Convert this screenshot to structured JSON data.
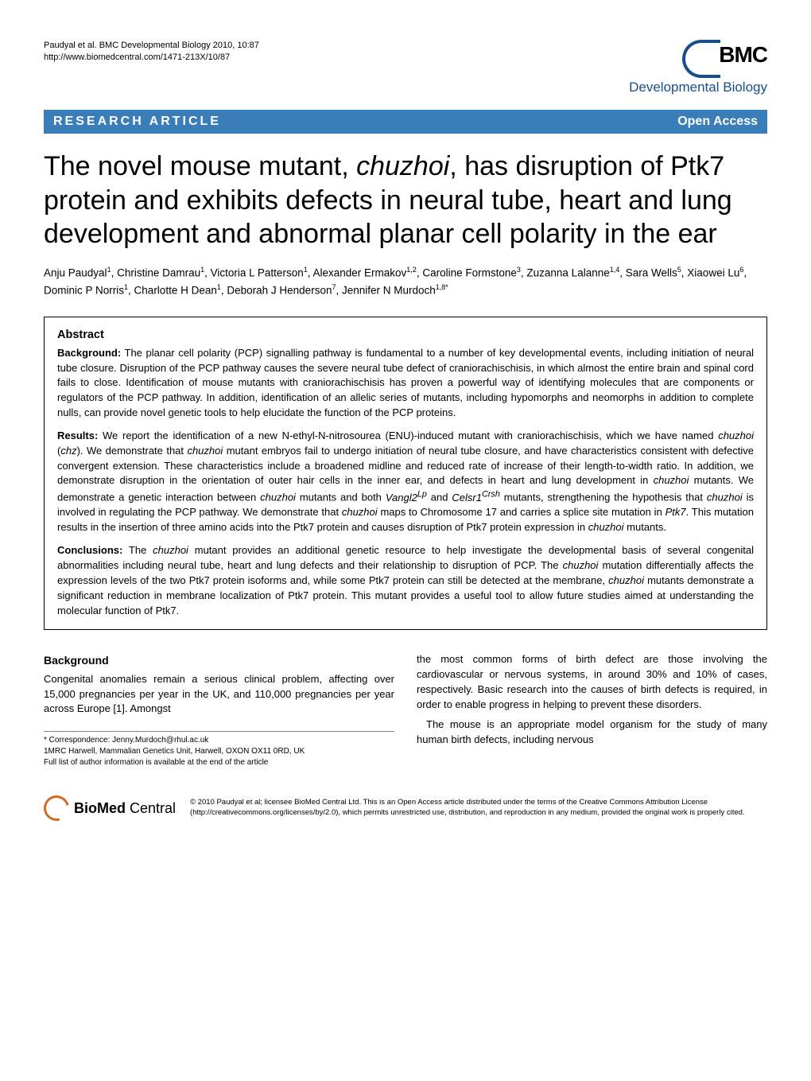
{
  "header": {
    "citation_line1": "Paudyal et al. BMC Developmental Biology 2010, 10:87",
    "citation_line2": "http://www.biomedcentral.com/1471-213X/10/87",
    "logo_main": "BMC",
    "logo_sub": "Developmental Biology"
  },
  "bar": {
    "left": "RESEARCH ARTICLE",
    "right": "Open Access",
    "bg_color": "#397eb8",
    "text_color": "#ffffff"
  },
  "title_html": "The novel mouse mutant, <em>chuzhoi</em>, has disruption of Ptk7 protein and exhibits defects in neural tube, heart and lung development and abnormal planar cell polarity in the ear",
  "authors_html": "Anju Paudyal<sup>1</sup>, Christine Damrau<sup>1</sup>, Victoria L Patterson<sup>1</sup>, Alexander Ermakov<sup>1,2</sup>, Caroline Formstone<sup>3</sup>, Zuzanna Lalanne<sup>1,4</sup>, Sara Wells<sup>5</sup>, Xiaowei Lu<sup>6</sup>, Dominic P Norris<sup>1</sup>, Charlotte H Dean<sup>1</sup>, Deborah J Henderson<sup>7</sup>, Jennifer N Murdoch<sup>1,8*</sup>",
  "abstract": {
    "heading": "Abstract",
    "background_label": "Background:",
    "background_text": " The planar cell polarity (PCP) signalling pathway is fundamental to a number of key developmental events, including initiation of neural tube closure. Disruption of the PCP pathway causes the severe neural tube defect of craniorachischisis, in which almost the entire brain and spinal cord fails to close. Identification of mouse mutants with craniorachischisis has proven a powerful way of identifying molecules that are components or regulators of the PCP pathway. In addition, identification of an allelic series of mutants, including hypomorphs and neomorphs in addition to complete nulls, can provide novel genetic tools to help elucidate the function of the PCP proteins.",
    "results_label": "Results:",
    "results_text_html": " We report the identification of a new N-ethyl-N-nitrosourea (ENU)-induced mutant with craniorachischisis, which we have named <em>chuzhoi</em> (<em>chz</em>). We demonstrate that <em>chuzhoi</em> mutant embryos fail to undergo initiation of neural tube closure, and have characteristics consistent with defective convergent extension. These characteristics include a broadened midline and reduced rate of increase of their length-to-width ratio. In addition, we demonstrate disruption in the orientation of outer hair cells in the inner ear, and defects in heart and lung development in <em>chuzhoi</em> mutants. We demonstrate a genetic interaction between <em>chuzhoi</em> mutants and both <em>Vangl2<sup>Lp</sup></em> and <em>Celsr1<sup>Crsh</sup></em> mutants, strengthening the hypothesis that <em>chuzhoi</em> is involved in regulating the PCP pathway. We demonstrate that <em>chuzhoi</em> maps to Chromosome 17 and carries a splice site mutation in <em>Ptk7</em>. This mutation results in the insertion of three amino acids into the Ptk7 protein and causes disruption of Ptk7 protein expression in <em>chuzhoi</em> mutants.",
    "conclusions_label": "Conclusions:",
    "conclusions_text_html": " The <em>chuzhoi</em> mutant provides an additional genetic resource to help investigate the developmental basis of several congenital abnormalities including neural tube, heart and lung defects and their relationship to disruption of PCP. The <em>chuzhoi</em> mutation differentially affects the expression levels of the two Ptk7 protein isoforms and, while some Ptk7 protein can still be detected at the membrane, <em>chuzhoi</em> mutants demonstrate a significant reduction in membrane localization of Ptk7 protein. This mutant provides a useful tool to allow future studies aimed at understanding the molecular function of Ptk7."
  },
  "body": {
    "background_heading": "Background",
    "col1_text": "Congenital anomalies remain a serious clinical problem, affecting over 15,000 pregnancies per year in the UK, and 110,000 pregnancies per year across Europe [1]. Amongst",
    "col2_text1": "the most common forms of birth defect are those involving the cardiovascular or nervous systems, in around 30% and 10% of cases, respectively. Basic research into the causes of birth defects is required, in order to enable progress in helping to prevent these disorders.",
    "col2_text2": "The mouse is an appropriate model organism for the study of many human birth defects, including nervous"
  },
  "correspondence": {
    "line1": "* Correspondence: Jenny.Murdoch@rhul.ac.uk",
    "line2": "1MRC Harwell, Mammalian Genetics Unit, Harwell, OXON OX11 0RD, UK",
    "line3": "Full list of author information is available at the end of the article"
  },
  "footer": {
    "logo_bold": "BioMed",
    "logo_light": " Central",
    "license": "© 2010 Paudyal et al; licensee BioMed Central Ltd. This is an Open Access article distributed under the terms of the Creative Commons Attribution License (http://creativecommons.org/licenses/by/2.0), which permits unrestricted use, distribution, and reproduction in any medium, provided the original work is properly cited."
  },
  "colors": {
    "bar_bg": "#397eb8",
    "logo_blue": "#1a4e8a",
    "biomed_orange": "#d46a28"
  }
}
